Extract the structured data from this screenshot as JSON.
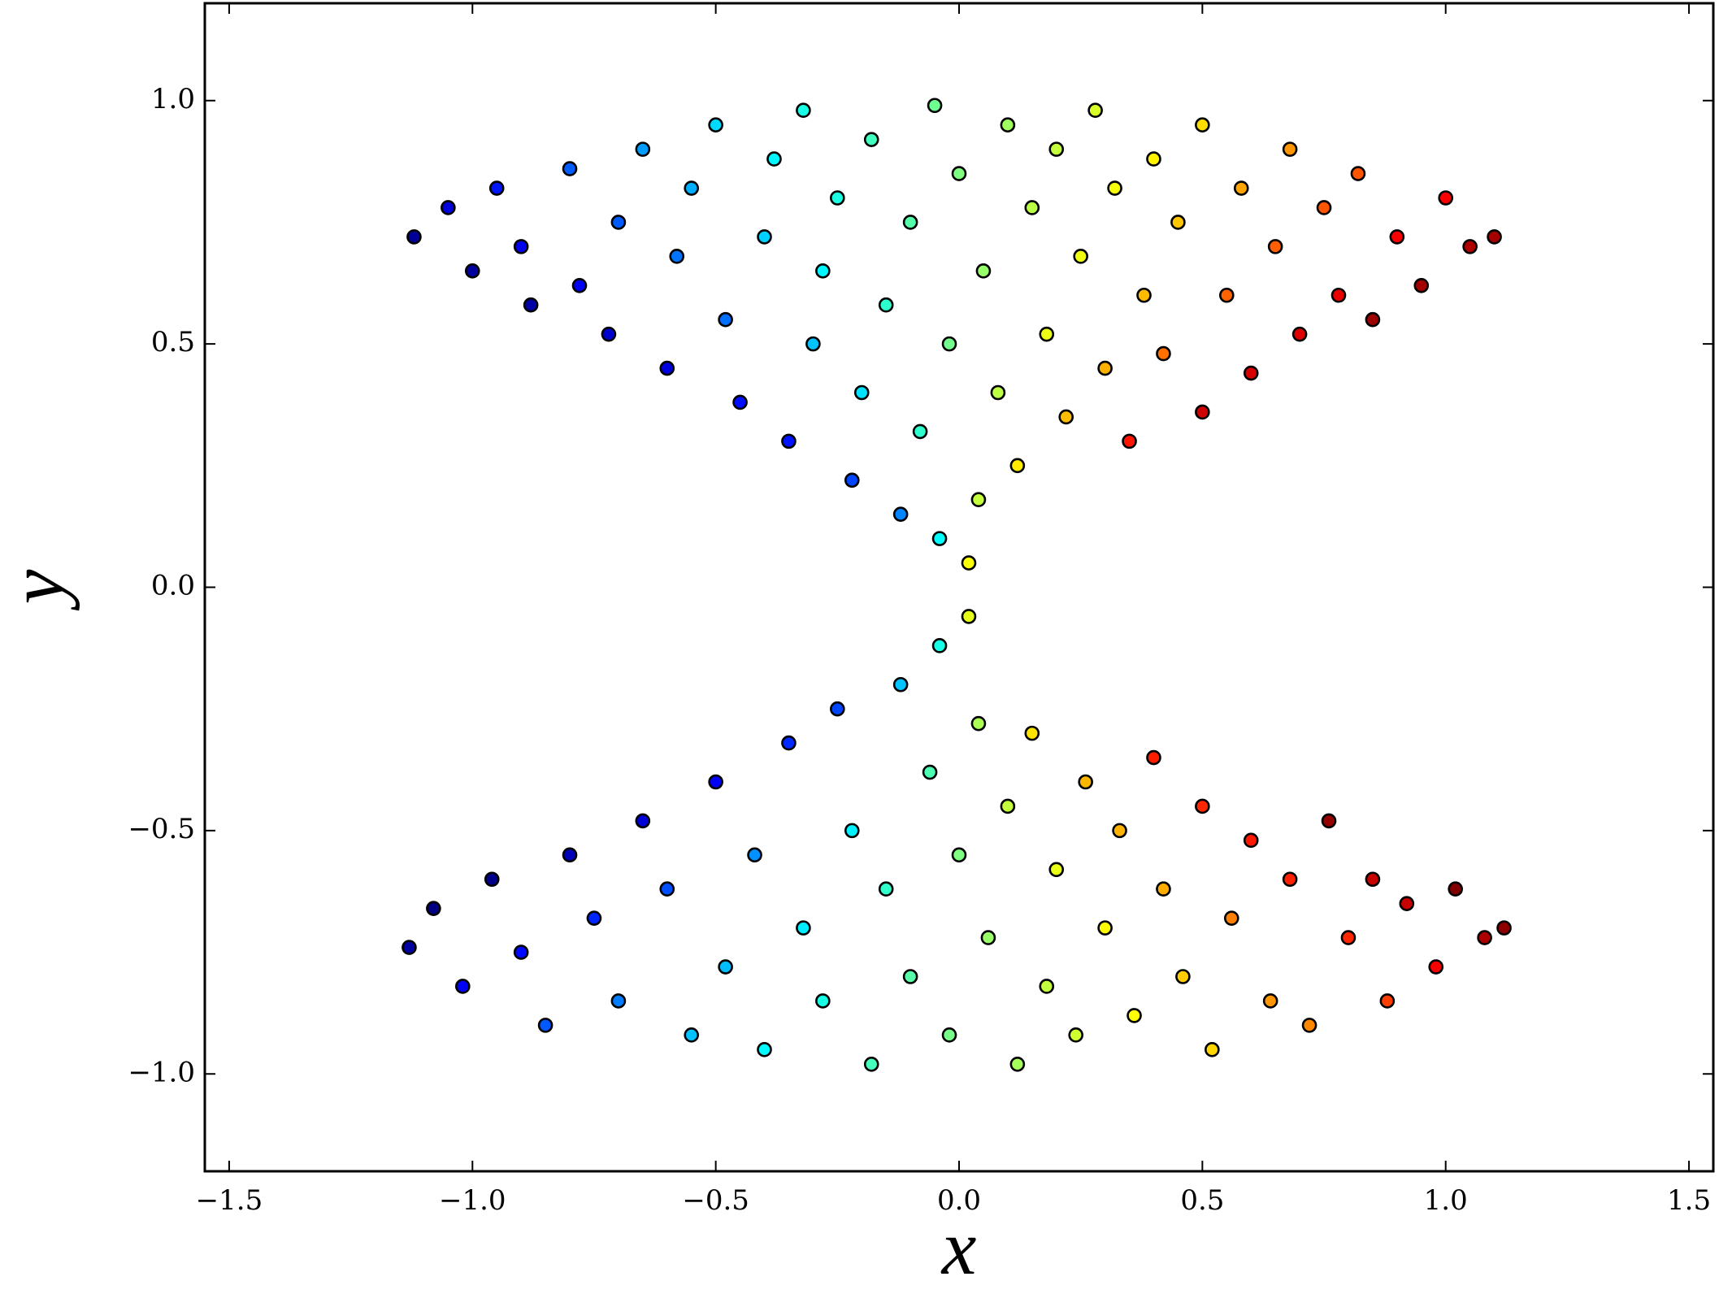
{
  "chart_data": {
    "type": "scatter",
    "xlabel": "x",
    "ylabel": "y",
    "xlim": [
      -1.55,
      1.55
    ],
    "ylim": [
      -1.2,
      1.2
    ],
    "xticks": [
      {
        "value": -1.5,
        "label": "−1.5"
      },
      {
        "value": -1.0,
        "label": "−1.0"
      },
      {
        "value": -0.5,
        "label": "−0.5"
      },
      {
        "value": 0,
        "label": "0.0"
      },
      {
        "value": 0.5,
        "label": "0.5"
      },
      {
        "value": 1,
        "label": "1.0"
      },
      {
        "value": 1.5,
        "label": "1.5"
      }
    ],
    "yticks": [
      {
        "value": -1.0,
        "label": "−1.0"
      },
      {
        "value": -0.5,
        "label": "−0.5"
      },
      {
        "value": 0,
        "label": "0.0"
      },
      {
        "value": 0.5,
        "label": "0.5"
      },
      {
        "value": 1,
        "label": "1.0"
      }
    ],
    "colormap": "jet",
    "edgecolor": "#000000",
    "grid": false,
    "x": [
      -1.12,
      -1.05,
      -1.0,
      -0.95,
      -0.9,
      -0.88,
      -0.8,
      -0.78,
      -0.72,
      -0.7,
      -0.65,
      -0.6,
      -0.58,
      -0.55,
      -0.5,
      -0.48,
      -0.45,
      -0.4,
      -0.38,
      -0.35,
      -0.32,
      -0.3,
      -0.28,
      -0.25,
      -0.22,
      -0.2,
      -0.18,
      -0.15,
      -0.12,
      -0.1,
      -0.08,
      -0.05,
      -0.04,
      -0.02,
      0,
      0.02,
      0.04,
      0.05,
      0.08,
      0.1,
      0.12,
      0.15,
      0.18,
      0.2,
      0.22,
      0.25,
      0.28,
      0.3,
      0.32,
      0.35,
      0.38,
      0.4,
      0.42,
      0.45,
      0.5,
      0.5,
      0.55,
      0.58,
      0.6,
      0.65,
      0.68,
      0.7,
      0.75,
      0.78,
      0.82,
      0.85,
      0.9,
      0.95,
      1.0,
      1.05,
      1.1,
      -1.13,
      -1.08,
      -1.02,
      -0.96,
      -0.9,
      -0.85,
      -0.8,
      -0.75,
      -0.7,
      -0.65,
      -0.6,
      -0.55,
      -0.5,
      -0.48,
      -0.42,
      -0.4,
      -0.35,
      -0.32,
      -0.28,
      -0.25,
      -0.22,
      -0.18,
      -0.15,
      -0.12,
      -0.1,
      -0.06,
      -0.04,
      -0.02,
      0,
      0.02,
      0.04,
      0.06,
      0.1,
      0.12,
      0.15,
      0.18,
      0.2,
      0.24,
      0.26,
      0.3,
      0.33,
      0.36,
      0.4,
      0.42,
      0.46,
      0.5,
      0.52,
      0.56,
      0.6,
      0.64,
      0.68,
      0.72,
      0.76,
      0.8,
      0.85,
      0.88,
      0.92,
      0.98,
      1.02,
      1.08,
      1.12
    ],
    "y": [
      0.72,
      0.78,
      0.65,
      0.82,
      0.7,
      0.58,
      0.86,
      0.62,
      0.52,
      0.75,
      0.9,
      0.45,
      0.68,
      0.82,
      0.95,
      0.55,
      0.38,
      0.72,
      0.88,
      0.3,
      0.98,
      0.5,
      0.65,
      0.8,
      0.22,
      0.4,
      0.92,
      0.58,
      0.15,
      0.75,
      0.32,
      0.99,
      0.1,
      0.5,
      0.85,
      0.05,
      0.18,
      0.65,
      0.4,
      0.95,
      0.25,
      0.78,
      0.52,
      0.9,
      0.35,
      0.68,
      0.98,
      0.45,
      0.82,
      0.3,
      0.6,
      0.88,
      0.48,
      0.75,
      0.95,
      0.36,
      0.6,
      0.82,
      0.44,
      0.7,
      0.9,
      0.52,
      0.78,
      0.6,
      0.85,
      0.55,
      0.72,
      0.62,
      0.8,
      0.7,
      0.72,
      -0.74,
      -0.66,
      -0.82,
      -0.6,
      -0.75,
      -0.9,
      -0.55,
      -0.68,
      -0.85,
      -0.48,
      -0.62,
      -0.92,
      -0.4,
      -0.78,
      -0.55,
      -0.95,
      -0.32,
      -0.7,
      -0.85,
      -0.25,
      -0.5,
      -0.98,
      -0.62,
      -0.2,
      -0.8,
      -0.38,
      -0.12,
      -0.92,
      -0.55,
      -0.06,
      -0.28,
      -0.72,
      -0.45,
      -0.98,
      -0.3,
      -0.82,
      -0.58,
      -0.92,
      -0.4,
      -0.7,
      -0.5,
      -0.88,
      -0.35,
      -0.62,
      -0.8,
      -0.45,
      -0.95,
      -0.68,
      -0.52,
      -0.85,
      -0.6,
      -0.9,
      -0.48,
      -0.72,
      -0.6,
      -0.85,
      -0.65,
      -0.78,
      -0.62,
      -0.72,
      -0.7
    ]
  }
}
